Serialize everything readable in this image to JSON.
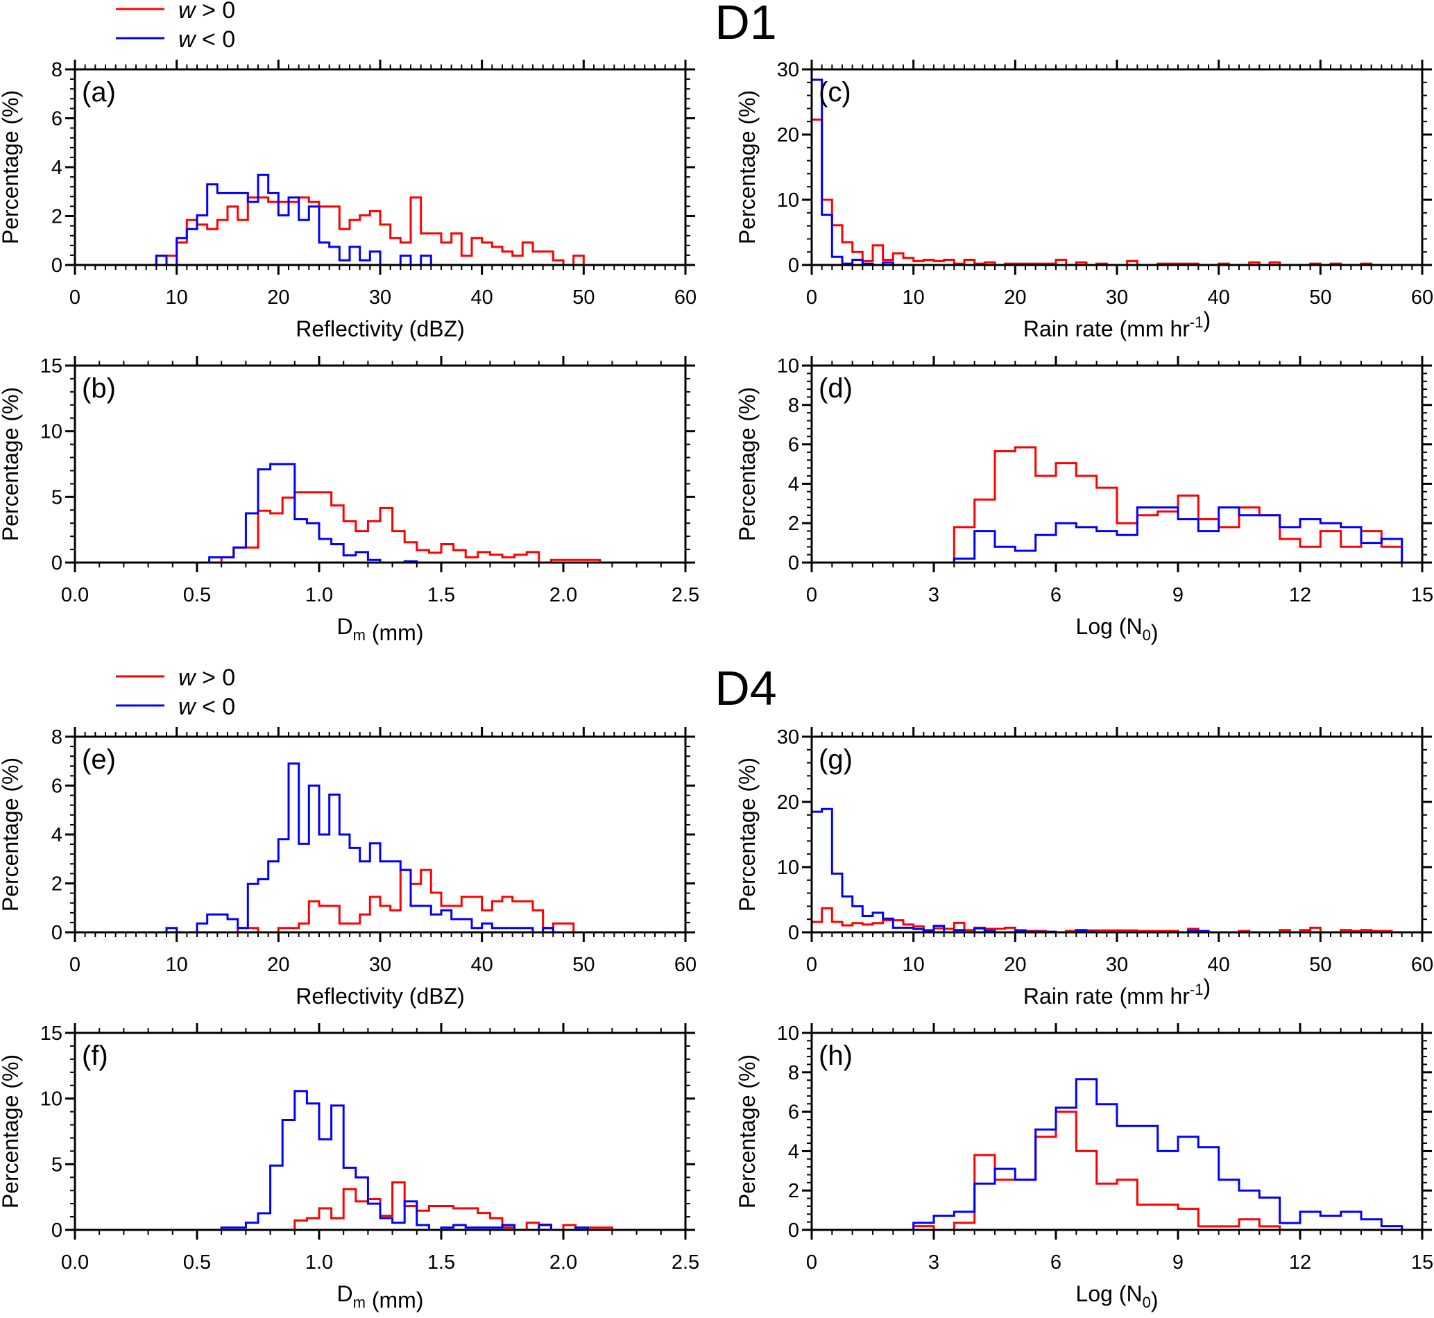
{
  "groups": [
    {
      "title": "D1",
      "legend": [
        {
          "var": "w",
          "rest": " > 0",
          "color": "#ff0000"
        },
        {
          "var": "w",
          "rest": " < 0",
          "color": "#0000ff"
        }
      ]
    },
    {
      "title": "D4",
      "legend": [
        {
          "var": "w",
          "rest": " > 0",
          "color": "#ff0000"
        },
        {
          "var": "w",
          "rest": " < 0",
          "color": "#0000ff"
        }
      ]
    }
  ],
  "chart_data": [
    {
      "type": "histogram",
      "panel_label": "(a)",
      "group": "D1",
      "xlabel": [
        {
          "t": "Reflectivity (dBZ)"
        }
      ],
      "ylabel": "Percentage (%)",
      "xlim": [
        0,
        60
      ],
      "ylim": [
        0,
        8
      ],
      "xticks": [
        0,
        10,
        20,
        30,
        40,
        50,
        60
      ],
      "xtick_labels": [
        "0",
        "10",
        "20",
        "30",
        "40",
        "50",
        "60"
      ],
      "yticks": [
        0,
        2,
        4,
        6,
        8
      ],
      "ytick_labels": [
        "0",
        "2",
        "4",
        "6",
        "8"
      ],
      "x_minor": 1,
      "y_minor": 0.4,
      "bin_width": 1,
      "series": [
        {
          "name": "w > 0",
          "color": "#ff0000",
          "x_start": 7,
          "values": [
            0,
            0.38,
            0.38,
            0.92,
            1.84,
            1.65,
            1.47,
            1.84,
            2.39,
            1.84,
            2.76,
            2.76,
            2.58,
            2.58,
            2.58,
            2.76,
            2.58,
            2.39,
            2.39,
            1.47,
            1.84,
            2.03,
            2.2,
            1.65,
            1.1,
            0.92,
            2.76,
            1.29,
            1.29,
            0.92,
            1.29,
            0.38,
            1.1,
            0.92,
            0.74,
            0.55,
            0.38,
            0.92,
            0.55,
            0.55,
            0.19,
            0,
            0.38,
            0
          ]
        },
        {
          "name": "w < 0",
          "color": "#0000ff",
          "x_start": 8,
          "values": [
            0.38,
            0,
            1.1,
            1.47,
            2.03,
            3.3,
            2.94,
            2.94,
            2.94,
            2.58,
            3.68,
            2.94,
            2.03,
            2.76,
            1.84,
            2.39,
            0.92,
            0.74,
            0.19,
            0.74,
            0.19,
            0.55,
            0,
            0,
            0.38,
            0,
            0.38,
            0
          ]
        }
      ]
    },
    {
      "type": "histogram",
      "panel_label": "(b)",
      "group": "D1",
      "xlabel": [
        {
          "t": "D"
        },
        {
          "t": "m",
          "sub": true
        },
        {
          "t": " (mm)"
        }
      ],
      "ylabel": "Percentage (%)",
      "xlim": [
        0,
        2.5
      ],
      "ylim": [
        0,
        15
      ],
      "xticks": [
        0,
        0.5,
        1,
        1.5,
        2,
        2.5
      ],
      "xtick_labels": [
        "0.0",
        "0.5",
        "1.0",
        "1.5",
        "2.0",
        "2.5"
      ],
      "yticks": [
        0,
        5,
        10,
        15
      ],
      "ytick_labels": [
        "0",
        "5",
        "10",
        "15"
      ],
      "x_minor": 0.1,
      "y_minor": 1,
      "bin_width": 0.05,
      "series": [
        {
          "name": "w > 0",
          "color": "#ff0000",
          "x_start": 0.55,
          "values": [
            0,
            0.4,
            1.15,
            1.15,
            3.95,
            3.75,
            4.95,
            5.35,
            5.35,
            5.35,
            4.35,
            3.15,
            2.4,
            3.15,
            4.15,
            2.4,
            1.55,
            0.95,
            0.75,
            1.4,
            0.95,
            0.4,
            0.8,
            0.6,
            0.4,
            0.6,
            0.8,
            0,
            0.2,
            0.2,
            0.2,
            0.2,
            0
          ]
        },
        {
          "name": "w < 0",
          "color": "#0000ff",
          "x_start": 0.5,
          "values": [
            0,
            0.4,
            0.4,
            1.15,
            3.75,
            7.1,
            7.5,
            7.5,
            3.3,
            3.0,
            1.8,
            1.4,
            0.55,
            0.8,
            0.2,
            0,
            0,
            0.1,
            0
          ]
        }
      ]
    },
    {
      "type": "histogram",
      "panel_label": "(c)",
      "group": "D1",
      "xlabel": [
        {
          "t": "Rain rate (mm hr"
        },
        {
          "t": "-1",
          "sup": true
        },
        {
          "t": ")"
        }
      ],
      "ylabel": "Percentage (%)",
      "xlim": [
        0,
        60
      ],
      "ylim": [
        0,
        30
      ],
      "xticks": [
        0,
        10,
        20,
        30,
        40,
        50,
        60
      ],
      "xtick_labels": [
        "0",
        "10",
        "20",
        "30",
        "40",
        "50",
        "60"
      ],
      "yticks": [
        0,
        10,
        20,
        30
      ],
      "ytick_labels": [
        "0",
        "10",
        "20",
        "30"
      ],
      "x_minor": 1,
      "y_minor": 2,
      "bin_width": 1,
      "series": [
        {
          "name": "w > 0",
          "color": "#ff0000",
          "x_start": 0,
          "values": [
            22.3,
            10,
            6.1,
            3.5,
            2.0,
            0.6,
            3.0,
            0.8,
            1.8,
            1.1,
            0.6,
            0.8,
            0.6,
            0.8,
            0.2,
            0.8,
            0.2,
            0.4,
            0,
            0.2,
            0.2,
            0.2,
            0.2,
            0.2,
            0.8,
            0,
            0.4,
            0,
            0.2,
            0,
            0,
            0.6,
            0,
            0,
            0.2,
            0.2,
            0.2,
            0.2,
            0,
            0,
            0.2,
            0,
            0,
            0.4,
            0,
            0.4,
            0,
            0,
            0,
            0.2,
            0,
            0.2,
            0,
            0,
            0.2,
            0,
            0
          ]
        },
        {
          "name": "w < 0",
          "color": "#0000ff",
          "x_start": 0,
          "values": [
            28.4,
            7.7,
            1.24,
            0.2,
            0.8,
            0.2,
            0,
            0.4,
            0
          ]
        }
      ]
    },
    {
      "type": "histogram",
      "panel_label": "(d)",
      "group": "D1",
      "xlabel": [
        {
          "t": "Log (N"
        },
        {
          "t": "0",
          "sub": true
        },
        {
          "t": ")"
        }
      ],
      "ylabel": "Percentage (%)",
      "xlim": [
        0,
        15
      ],
      "ylim": [
        0,
        10
      ],
      "xticks": [
        0,
        3,
        6,
        9,
        12,
        15
      ],
      "xtick_labels": [
        "0",
        "3",
        "6",
        "9",
        "12",
        "15"
      ],
      "yticks": [
        0,
        2,
        4,
        6,
        8,
        10
      ],
      "ytick_labels": [
        "0",
        "2",
        "4",
        "6",
        "8",
        "10"
      ],
      "x_minor": 0.5,
      "y_minor": 0.4,
      "bin_width": 0.5,
      "series": [
        {
          "name": "w > 0",
          "color": "#ff0000",
          "x_start": 3,
          "values": [
            0,
            1.8,
            3.2,
            5.65,
            5.85,
            4.4,
            5.05,
            4.4,
            3.8,
            2.0,
            2.4,
            2.6,
            3.4,
            2.2,
            1.8,
            2.8,
            2.4,
            1.2,
            0.8,
            1.6,
            0.8,
            1.6,
            0.8
          ]
        },
        {
          "name": "w < 0",
          "color": "#0000ff",
          "x_start": 3,
          "values": [
            0,
            0.2,
            1.6,
            0.8,
            0.6,
            1.4,
            2.0,
            1.8,
            1.6,
            1.4,
            2.8,
            2.8,
            2.2,
            1.6,
            2.8,
            2.4,
            2.4,
            1.8,
            2.2,
            2.0,
            1.8,
            1.0,
            1.2
          ]
        }
      ]
    },
    {
      "type": "histogram",
      "panel_label": "(e)",
      "group": "D4",
      "xlabel": [
        {
          "t": "Reflectivity (dBZ)"
        }
      ],
      "ylabel": "Percentage (%)",
      "xlim": [
        0,
        60
      ],
      "ylim": [
        0,
        8
      ],
      "xticks": [
        0,
        10,
        20,
        30,
        40,
        50,
        60
      ],
      "xtick_labels": [
        "0",
        "10",
        "20",
        "30",
        "40",
        "50",
        "60"
      ],
      "yticks": [
        0,
        2,
        4,
        6,
        8
      ],
      "ytick_labels": [
        "0",
        "2",
        "4",
        "6",
        "8"
      ],
      "x_minor": 1,
      "y_minor": 0.4,
      "bin_width": 1,
      "series": [
        {
          "name": "w > 0",
          "color": "#ff0000",
          "x_start": 15,
          "values": [
            0,
            0.18,
            0.18,
            0,
            0,
            0.18,
            0.18,
            0.36,
            1.27,
            1.08,
            1.08,
            0.36,
            0.36,
            0.73,
            1.45,
            1.08,
            0.9,
            2.55,
            1.98,
            2.55,
            1.62,
            1.08,
            1.08,
            1.45,
            1.45,
            0.9,
            1.27,
            1.45,
            1.27,
            1.27,
            0.9,
            0.18,
            0.36,
            0.36,
            0
          ]
        },
        {
          "name": "w < 0",
          "color": "#0000ff",
          "x_start": 8,
          "values": [
            0,
            0.18,
            0,
            0,
            0.36,
            0.73,
            0.73,
            0.54,
            0.18,
            1.98,
            2.17,
            2.9,
            3.81,
            6.9,
            3.62,
            6.0,
            4.0,
            5.63,
            4.0,
            3.45,
            2.9,
            3.64,
            2.9,
            2.9,
            2.55,
            1.08,
            1.08,
            0.73,
            0.9,
            0.54,
            0.54,
            0.18,
            0.36,
            0.18,
            0.18,
            0.18,
            0.18,
            0,
            0.18,
            0
          ]
        }
      ]
    },
    {
      "type": "histogram",
      "panel_label": "(f)",
      "group": "D4",
      "xlabel": [
        {
          "t": "D"
        },
        {
          "t": "m",
          "sub": true
        },
        {
          "t": " (mm)"
        }
      ],
      "ylabel": "Percentage (%)",
      "xlim": [
        0,
        2.5
      ],
      "ylim": [
        0,
        15
      ],
      "xticks": [
        0,
        0.5,
        1,
        1.5,
        2,
        2.5
      ],
      "xtick_labels": [
        "0.0",
        "0.5",
        "1.0",
        "1.5",
        "2.0",
        "2.5"
      ],
      "yticks": [
        0,
        5,
        10,
        15
      ],
      "ytick_labels": [
        "0",
        "5",
        "10",
        "15"
      ],
      "x_minor": 0.1,
      "y_minor": 1,
      "bin_width": 0.05,
      "series": [
        {
          "name": "w > 0",
          "color": "#ff0000",
          "x_start": 0.85,
          "values": [
            0,
            0.72,
            0.9,
            1.64,
            0.9,
            3.1,
            2.17,
            2.35,
            1.08,
            3.62,
            1.82,
            1.47,
            1.82,
            1.82,
            1.64,
            1.64,
            1.29,
            0.9,
            0.18,
            0,
            0.55,
            0.4,
            0,
            0.37,
            0,
            0.18,
            0.18,
            0
          ]
        },
        {
          "name": "w < 0",
          "color": "#0000ff",
          "x_start": 0.55,
          "values": [
            0,
            0.18,
            0.18,
            0.55,
            1.27,
            4.9,
            8.37,
            10.57,
            9.63,
            6.9,
            9.47,
            4.73,
            4.0,
            2.0,
            0.9,
            0.55,
            2.17,
            0.37,
            0,
            0.18,
            0.37,
            0.18,
            0.18,
            0.18,
            0.37,
            0,
            0,
            0.37,
            0,
            0,
            0.18,
            0
          ]
        }
      ]
    },
    {
      "type": "histogram",
      "panel_label": "(g)",
      "group": "D4",
      "xlabel": [
        {
          "t": "Rain rate (mm hr"
        },
        {
          "t": "-1",
          "sup": true
        },
        {
          "t": ")"
        }
      ],
      "ylabel": "Percentage (%)",
      "xlim": [
        0,
        60
      ],
      "ylim": [
        0,
        30
      ],
      "xticks": [
        0,
        10,
        20,
        30,
        40,
        50,
        60
      ],
      "xtick_labels": [
        "0",
        "10",
        "20",
        "30",
        "40",
        "50",
        "60"
      ],
      "yticks": [
        0,
        10,
        20,
        30
      ],
      "ytick_labels": [
        "0",
        "10",
        "20",
        "30"
      ],
      "x_minor": 1,
      "y_minor": 2,
      "bin_width": 1,
      "series": [
        {
          "name": "w > 0",
          "color": "#ff0000",
          "x_start": 0,
          "values": [
            1.6,
            3.7,
            1.6,
            1.06,
            1.4,
            1.2,
            1.4,
            1.85,
            1.85,
            1.2,
            0.9,
            0.35,
            0.6,
            0.53,
            1.45,
            0.35,
            0.7,
            0.53,
            0.53,
            0.7,
            0.35,
            0.2,
            0.2,
            0,
            0,
            0.2,
            0.2,
            0.3,
            0.3,
            0.3,
            0.3,
            0.3,
            0.2,
            0.2,
            0.2,
            0.2,
            0,
            0.53,
            0.1,
            0,
            0,
            0,
            0.2,
            0,
            0,
            0,
            0.35,
            0,
            0.35,
            0.7,
            0,
            0,
            0.35,
            0.2,
            0.35,
            0.2,
            0.2,
            0
          ]
        },
        {
          "name": "w < 0",
          "color": "#0000ff",
          "x_start": 0,
          "values": [
            18.5,
            18.9,
            9.0,
            5.5,
            4.0,
            2.5,
            3.0,
            2.1,
            0.7,
            0.7,
            0.5,
            0.2,
            1.0,
            0,
            0.35,
            0,
            0.6,
            0.2,
            0,
            0,
            0.2,
            0.1,
            0.1,
            0.1,
            0,
            0,
            0.35,
            0.1,
            0,
            0,
            0,
            0,
            0,
            0,
            0,
            0,
            0,
            0.2,
            0.2,
            0
          ]
        }
      ]
    },
    {
      "type": "histogram",
      "panel_label": "(h)",
      "group": "D4",
      "xlabel": [
        {
          "t": "Log (N"
        },
        {
          "t": "0",
          "sub": true
        },
        {
          "t": ")"
        }
      ],
      "ylabel": "Percentage (%)",
      "xlim": [
        0,
        15
      ],
      "ylim": [
        0,
        10
      ],
      "xticks": [
        0,
        3,
        6,
        9,
        12,
        15
      ],
      "xtick_labels": [
        "0",
        "3",
        "6",
        "9",
        "12",
        "15"
      ],
      "yticks": [
        0,
        2,
        4,
        6,
        8,
        10
      ],
      "ytick_labels": [
        "0",
        "2",
        "4",
        "6",
        "8",
        "10"
      ],
      "x_minor": 0.5,
      "y_minor": 0.4,
      "bin_width": 0.5,
      "series": [
        {
          "name": "w > 0",
          "color": "#ff0000",
          "x_start": 2,
          "values": [
            0,
            0.19,
            0,
            0.36,
            3.8,
            2.55,
            2.55,
            4.73,
            6.0,
            4.0,
            2.35,
            2.55,
            1.28,
            1.28,
            1.07,
            0.18,
            0.18,
            0.54,
            0.18,
            0
          ]
        },
        {
          "name": "w < 0",
          "color": "#0000ff",
          "x_start": 2,
          "values": [
            0,
            0.36,
            0.72,
            0.92,
            2.35,
            3.1,
            2.55,
            5.1,
            6.2,
            7.65,
            6.38,
            5.27,
            5.27,
            4.0,
            4.73,
            4.2,
            2.55,
            2.0,
            1.64,
            0.35,
            0.92,
            0.72,
            0.92,
            0.54,
            0.19
          ]
        }
      ]
    }
  ]
}
